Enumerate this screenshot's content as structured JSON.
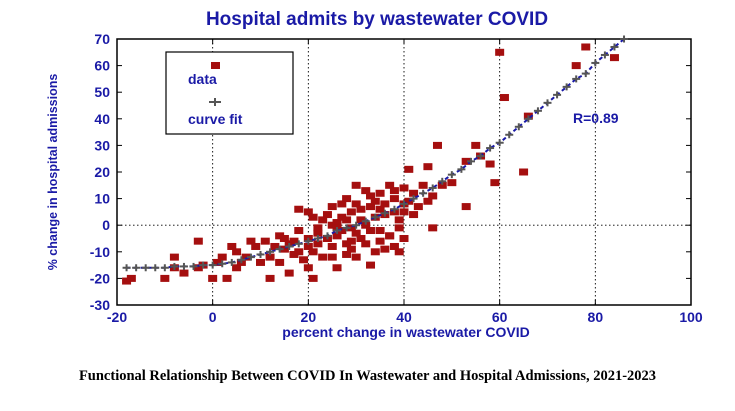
{
  "caption": "Functional Relationship Between COVID In Wastewater and Hospital Admissions, 2021-2023",
  "chart_data": {
    "type": "scatter",
    "title": "Hospital admits by wastewater COVID",
    "xlabel": "percent change in wastewater COVID",
    "ylabel": "% change in hospital admissions",
    "xlim": [
      -20,
      100
    ],
    "ylim": [
      -30,
      70
    ],
    "xticks": [
      -20,
      0,
      20,
      40,
      60,
      80,
      100
    ],
    "yticks": [
      -30,
      -20,
      -10,
      0,
      10,
      20,
      30,
      40,
      50,
      60,
      70
    ],
    "grid": "dotted",
    "legend_position": "top-left",
    "annotation": "R=0.89",
    "colors": {
      "data": "#a50f0f",
      "curve_fit": "#555555",
      "fit_line": "#1a1aa6",
      "text": "#1a1aa6"
    },
    "series": [
      {
        "name": "data",
        "marker": "square",
        "points": [
          [
            -18,
            -21
          ],
          [
            -17,
            -20
          ],
          [
            -10,
            -20
          ],
          [
            -8,
            -12
          ],
          [
            -8,
            -16
          ],
          [
            -6,
            -18
          ],
          [
            -3,
            -16
          ],
          [
            -3,
            -6
          ],
          [
            -2,
            -15
          ],
          [
            0,
            -20
          ],
          [
            1,
            -14
          ],
          [
            2,
            -12
          ],
          [
            3,
            -20
          ],
          [
            4,
            -8
          ],
          [
            5,
            -10
          ],
          [
            5,
            -16
          ],
          [
            6,
            -14
          ],
          [
            7,
            -12
          ],
          [
            8,
            -6
          ],
          [
            9,
            -8
          ],
          [
            10,
            -14
          ],
          [
            11,
            -6
          ],
          [
            12,
            -12
          ],
          [
            12,
            -20
          ],
          [
            13,
            -8
          ],
          [
            14,
            -4
          ],
          [
            14,
            -14
          ],
          [
            15,
            -5
          ],
          [
            15,
            -9
          ],
          [
            16,
            -7
          ],
          [
            16,
            -18
          ],
          [
            17,
            -6
          ],
          [
            17,
            -11
          ],
          [
            18,
            -2
          ],
          [
            18,
            -10
          ],
          [
            19,
            -13
          ],
          [
            20,
            -5
          ],
          [
            20,
            -8
          ],
          [
            20,
            -16
          ],
          [
            21,
            -20
          ],
          [
            21,
            -10
          ],
          [
            22,
            -7
          ],
          [
            22,
            -3
          ],
          [
            23,
            -12
          ],
          [
            24,
            -5
          ],
          [
            25,
            -8
          ],
          [
            25,
            -12
          ],
          [
            26,
            -4
          ],
          [
            26,
            -16
          ],
          [
            27,
            -2
          ],
          [
            28,
            -7
          ],
          [
            28,
            -11
          ],
          [
            29,
            -6
          ],
          [
            29,
            -9
          ],
          [
            30,
            -3
          ],
          [
            30,
            -12
          ],
          [
            31,
            -5
          ],
          [
            32,
            -7
          ],
          [
            33,
            -15
          ],
          [
            34,
            -10
          ],
          [
            35,
            -6
          ],
          [
            36,
            -9
          ],
          [
            37,
            -4
          ],
          [
            38,
            -8
          ],
          [
            39,
            -10
          ],
          [
            40,
            -5
          ],
          [
            18,
            6
          ],
          [
            20,
            5
          ],
          [
            21,
            3
          ],
          [
            22,
            -1
          ],
          [
            23,
            2
          ],
          [
            24,
            4
          ],
          [
            25,
            0
          ],
          [
            25,
            7
          ],
          [
            26,
            1
          ],
          [
            26,
            -1
          ],
          [
            27,
            3
          ],
          [
            27,
            8
          ],
          [
            28,
            10
          ],
          [
            28,
            2
          ],
          [
            29,
            5
          ],
          [
            29,
            -1
          ],
          [
            30,
            15
          ],
          [
            30,
            8
          ],
          [
            31,
            6
          ],
          [
            31,
            2
          ],
          [
            32,
            13
          ],
          [
            32,
            0
          ],
          [
            33,
            11
          ],
          [
            33,
            7
          ],
          [
            33,
            -2
          ],
          [
            34,
            9
          ],
          [
            34,
            3
          ],
          [
            35,
            12
          ],
          [
            35,
            6
          ],
          [
            35,
            -2
          ],
          [
            36,
            4
          ],
          [
            36,
            8
          ],
          [
            37,
            15
          ],
          [
            37,
            -4
          ],
          [
            38,
            10
          ],
          [
            38,
            5
          ],
          [
            38,
            13
          ],
          [
            39,
            2
          ],
          [
            39,
            -1
          ],
          [
            40,
            8
          ],
          [
            40,
            14
          ],
          [
            40,
            5
          ],
          [
            41,
            21
          ],
          [
            41,
            9
          ],
          [
            42,
            12
          ],
          [
            42,
            4
          ],
          [
            43,
            7
          ],
          [
            44,
            15
          ],
          [
            45,
            22
          ],
          [
            45,
            9
          ],
          [
            46,
            11
          ],
          [
            46,
            -1
          ],
          [
            47,
            30
          ],
          [
            48,
            15
          ],
          [
            50,
            16
          ],
          [
            53,
            24
          ],
          [
            53,
            7
          ],
          [
            55,
            30
          ],
          [
            56,
            26
          ],
          [
            58,
            23
          ],
          [
            59,
            16
          ],
          [
            60,
            65
          ],
          [
            61,
            48
          ],
          [
            65,
            20
          ],
          [
            66,
            41
          ],
          [
            76,
            60
          ],
          [
            78,
            67
          ],
          [
            84,
            63
          ]
        ]
      },
      {
        "name": "curve fit",
        "marker": "plus",
        "points": [
          [
            -18,
            -16
          ],
          [
            -16,
            -16
          ],
          [
            -14,
            -16
          ],
          [
            -12,
            -16
          ],
          [
            -10,
            -16
          ],
          [
            -8,
            -15.5
          ],
          [
            -6,
            -15.5
          ],
          [
            -4,
            -15.5
          ],
          [
            -2,
            -15
          ],
          [
            0,
            -15
          ],
          [
            2,
            -14.5
          ],
          [
            4,
            -14
          ],
          [
            6,
            -13
          ],
          [
            8,
            -12
          ],
          [
            10,
            -11
          ],
          [
            12,
            -10
          ],
          [
            14,
            -9
          ],
          [
            16,
            -8
          ],
          [
            18,
            -7
          ],
          [
            20,
            -6
          ],
          [
            22,
            -5
          ],
          [
            24,
            -4
          ],
          [
            26,
            -2
          ],
          [
            28,
            -1
          ],
          [
            30,
            0
          ],
          [
            32,
            1.5
          ],
          [
            34,
            3
          ],
          [
            36,
            4.5
          ],
          [
            38,
            6
          ],
          [
            40,
            8
          ],
          [
            42,
            10
          ],
          [
            44,
            12
          ],
          [
            46,
            14
          ],
          [
            48,
            16.5
          ],
          [
            50,
            19
          ],
          [
            52,
            21
          ],
          [
            54,
            24
          ],
          [
            56,
            26
          ],
          [
            58,
            29
          ],
          [
            60,
            31
          ],
          [
            62,
            34
          ],
          [
            64,
            37
          ],
          [
            66,
            40
          ],
          [
            68,
            43
          ],
          [
            70,
            46
          ],
          [
            72,
            49
          ],
          [
            74,
            52
          ],
          [
            76,
            55
          ],
          [
            78,
            57
          ],
          [
            80,
            61
          ],
          [
            82,
            64
          ],
          [
            84,
            67
          ],
          [
            86,
            70
          ]
        ]
      }
    ]
  }
}
